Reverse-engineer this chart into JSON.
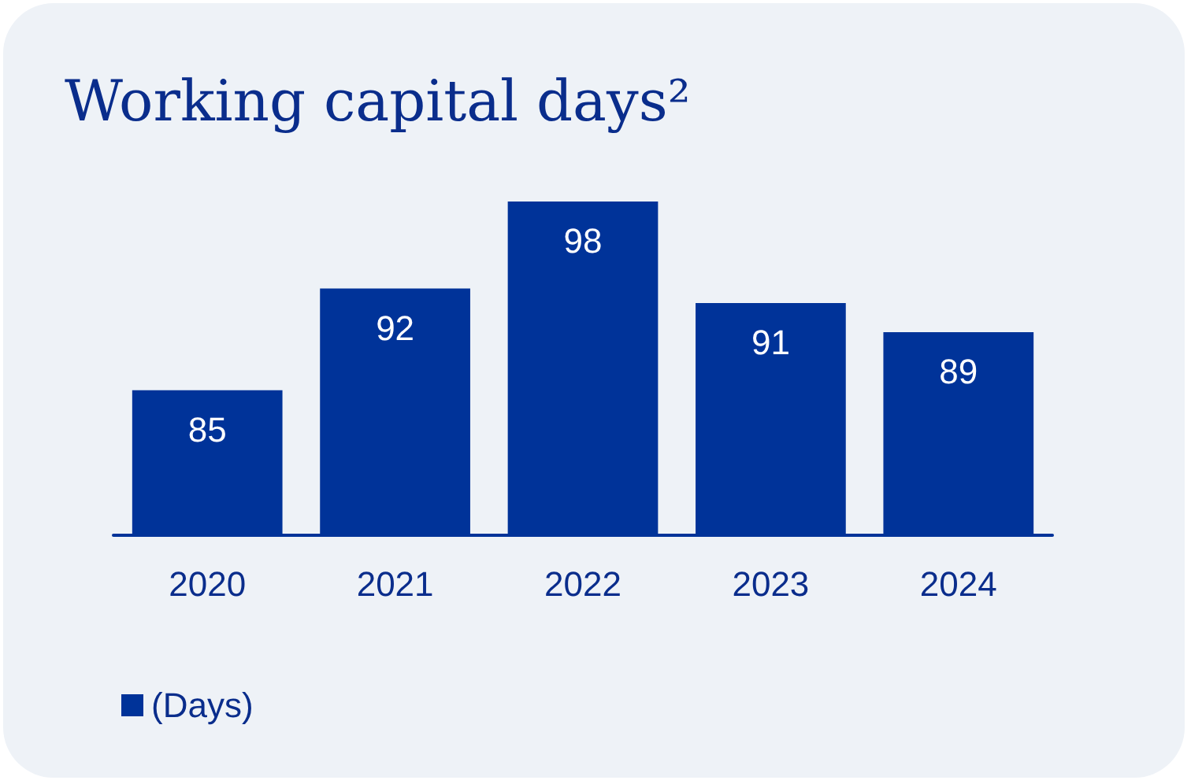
{
  "chart_data": {
    "type": "bar",
    "title": "Working capital days²",
    "categories": [
      "2020",
      "2021",
      "2022",
      "2023",
      "2024"
    ],
    "series": [
      {
        "name": "(Days)",
        "color": "#003399",
        "values": [
          85,
          92,
          98,
          91,
          89
        ]
      }
    ],
    "ylim": [
      75,
      98
    ],
    "tick_labels": "x",
    "data_labels": true,
    "grid": false,
    "legend": "bottom left"
  }
}
